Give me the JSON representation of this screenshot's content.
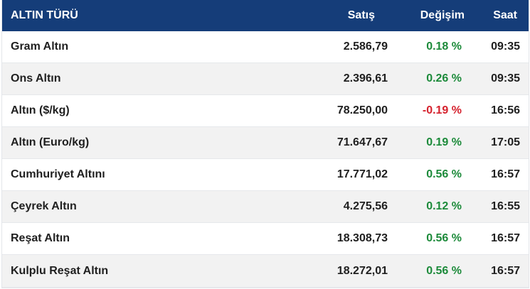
{
  "header": {
    "name": "ALTIN TÜRÜ",
    "price": "Satış",
    "change": "Değişim",
    "time": "Saat"
  },
  "rows": [
    {
      "name": "Gram Altın",
      "price": "2.586,79",
      "change": "0.18 %",
      "time": "09:35"
    },
    {
      "name": "Ons Altın",
      "price": "2.396,61",
      "change": "0.26 %",
      "time": "09:35"
    },
    {
      "name": "Altın ($/kg)",
      "price": "78.250,00",
      "change": "-0.19 %",
      "time": "16:56"
    },
    {
      "name": "Altın (Euro/kg)",
      "price": "71.647,67",
      "change": "0.19 %",
      "time": "17:05"
    },
    {
      "name": "Cumhuriyet Altını",
      "price": "17.771,02",
      "change": "0.56 %",
      "time": "16:57"
    },
    {
      "name": "Çeyrek Altın",
      "price": "4.275,56",
      "change": "0.12 %",
      "time": "16:55"
    },
    {
      "name": "Reşat Altın",
      "price": "18.308,73",
      "change": "0.56 %",
      "time": "16:57"
    },
    {
      "name": "Kulplu Reşat Altın",
      "price": "18.272,01",
      "change": "0.56 %",
      "time": "16:57"
    }
  ],
  "colors": {
    "header_bg": "#153d79",
    "positive": "#1c8a3a",
    "negative": "#d5212d"
  }
}
